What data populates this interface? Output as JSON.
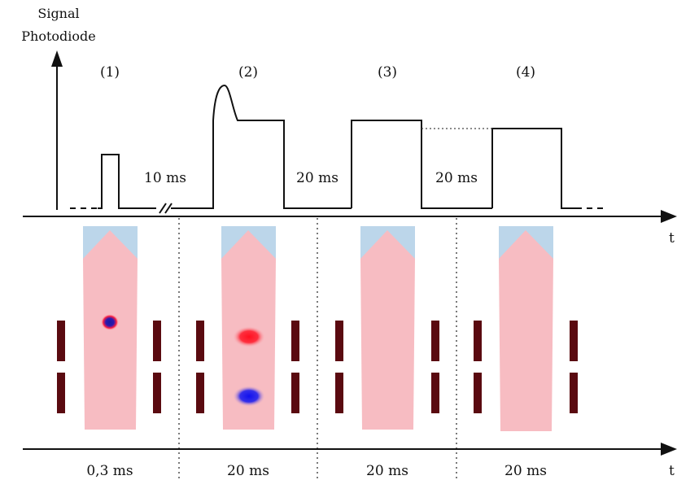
{
  "y_axis_label": [
    "Signal",
    "Photodiode"
  ],
  "time_axis_label": "t",
  "phases": [
    {
      "label": "(1)",
      "duration": "0,3 ms",
      "ions": "single"
    },
    {
      "label": "(2)",
      "duration": "20 ms",
      "ions": "separated"
    },
    {
      "label": "(3)",
      "duration": "20 ms",
      "ions": "none"
    },
    {
      "label": "(4)",
      "duration": "20 ms",
      "ions": "none"
    }
  ],
  "gaps": [
    "10 ms",
    "20 ms",
    "20 ms"
  ],
  "colors": {
    "beam": "#f7bcc2",
    "beam_head": "#bcd6ea",
    "plates": "#5a0a10",
    "ion_positive": "#ff1020",
    "ion_negative": "#1010ee"
  }
}
